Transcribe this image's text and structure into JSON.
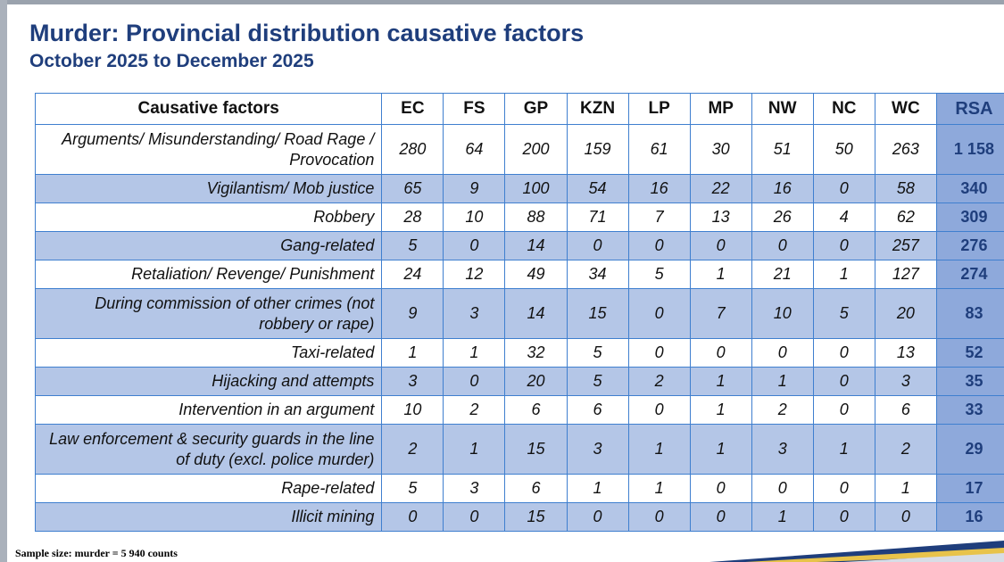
{
  "title": "Murder: Provincial distribution causative factors",
  "subtitle": "October 2025 to December 2025",
  "table": {
    "headers": [
      "Causative factors",
      "EC",
      "FS",
      "GP",
      "KZN",
      "LP",
      "MP",
      "NW",
      "NC",
      "WC",
      "RSA"
    ],
    "rows": [
      {
        "factor": "Arguments/ Misunderstanding/ Road Rage / Provocation",
        "values": [
          "280",
          "64",
          "200",
          "159",
          "61",
          "30",
          "51",
          "50",
          "263"
        ],
        "rsa": "1 158"
      },
      {
        "factor": "Vigilantism/ Mob justice",
        "values": [
          "65",
          "9",
          "100",
          "54",
          "16",
          "22",
          "16",
          "0",
          "58"
        ],
        "rsa": "340"
      },
      {
        "factor": "Robbery",
        "values": [
          "28",
          "10",
          "88",
          "71",
          "7",
          "13",
          "26",
          "4",
          "62"
        ],
        "rsa": "309"
      },
      {
        "factor": "Gang-related",
        "values": [
          "5",
          "0",
          "14",
          "0",
          "0",
          "0",
          "0",
          "0",
          "257"
        ],
        "rsa": "276"
      },
      {
        "factor": "Retaliation/ Revenge/ Punishment",
        "values": [
          "24",
          "12",
          "49",
          "34",
          "5",
          "1",
          "21",
          "1",
          "127"
        ],
        "rsa": "274"
      },
      {
        "factor": "During commission of other crimes (not robbery or rape)",
        "values": [
          "9",
          "3",
          "14",
          "15",
          "0",
          "7",
          "10",
          "5",
          "20"
        ],
        "rsa": "83"
      },
      {
        "factor": "Taxi-related",
        "values": [
          "1",
          "1",
          "32",
          "5",
          "0",
          "0",
          "0",
          "0",
          "13"
        ],
        "rsa": "52"
      },
      {
        "factor": "Hijacking and attempts",
        "values": [
          "3",
          "0",
          "20",
          "5",
          "2",
          "1",
          "1",
          "0",
          "3"
        ],
        "rsa": "35"
      },
      {
        "factor": "Intervention in an argument",
        "values": [
          "10",
          "2",
          "6",
          "6",
          "0",
          "1",
          "2",
          "0",
          "6"
        ],
        "rsa": "33"
      },
      {
        "factor": "Law enforcement & security guards in the line of duty (excl. police murder)",
        "values": [
          "2",
          "1",
          "15",
          "3",
          "1",
          "1",
          "3",
          "1",
          "2"
        ],
        "rsa": "29"
      },
      {
        "factor": "Rape-related",
        "values": [
          "5",
          "3",
          "6",
          "1",
          "1",
          "0",
          "0",
          "0",
          "1"
        ],
        "rsa": "17"
      },
      {
        "factor": "Illicit mining",
        "values": [
          "0",
          "0",
          "15",
          "0",
          "0",
          "0",
          "1",
          "0",
          "0"
        ],
        "rsa": "16"
      }
    ]
  },
  "footnote": "Sample size: murder = 5 940 counts",
  "colors": {
    "title": "#1f3e7c",
    "grid": "#3f7fcf",
    "alt_row": "#b4c6e7",
    "rsa_col": "#8ea9db"
  }
}
